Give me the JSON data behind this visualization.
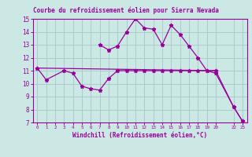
{
  "title": "Courbe du refroidissement éolien pour Sierra Nevada",
  "xlabel": "Windchill (Refroidissement éolien,°C)",
  "background_color": "#cce8e4",
  "grid_color": "#aacccc",
  "line_color": "#990099",
  "title_bg": "#cce8e4",
  "series1_x": [
    0,
    1,
    3,
    4,
    5,
    6,
    7,
    8,
    9,
    10,
    11,
    12,
    13,
    14,
    15,
    16,
    17,
    18,
    19,
    20
  ],
  "series1_y": [
    11.2,
    10.3,
    11.0,
    10.8,
    9.8,
    9.6,
    9.5,
    10.4,
    11.0,
    11.0,
    11.0,
    11.0,
    11.0,
    11.0,
    11.0,
    11.0,
    11.0,
    11.0,
    11.0,
    11.0
  ],
  "series2_x": [
    7,
    8,
    9,
    10,
    11,
    12,
    13,
    14,
    15,
    16,
    17,
    18,
    19,
    20,
    22,
    23
  ],
  "series2_y": [
    13.0,
    12.6,
    12.9,
    14.0,
    15.0,
    14.3,
    14.2,
    13.0,
    14.5,
    13.8,
    12.9,
    12.0,
    11.0,
    10.8,
    8.2,
    7.1
  ],
  "series3_x": [
    0,
    20,
    22,
    23
  ],
  "series3_y": [
    11.2,
    11.0,
    8.2,
    7.1
  ],
  "ylim": [
    7,
    15
  ],
  "yticks": [
    7,
    8,
    9,
    10,
    11,
    12,
    13,
    14,
    15
  ],
  "xtick_positions": [
    0,
    1,
    2,
    3,
    4,
    5,
    6,
    7,
    8,
    9,
    10,
    11,
    12,
    13,
    14,
    15,
    16,
    17,
    18,
    19,
    20,
    22,
    23
  ],
  "xtick_labels": [
    "0",
    "1",
    "2",
    "3",
    "4",
    "5",
    "6",
    "7",
    "8",
    "9",
    "10",
    "11",
    "12",
    "13",
    "14",
    "15",
    "16",
    "17",
    "18",
    "19",
    "20",
    "22",
    "23"
  ]
}
